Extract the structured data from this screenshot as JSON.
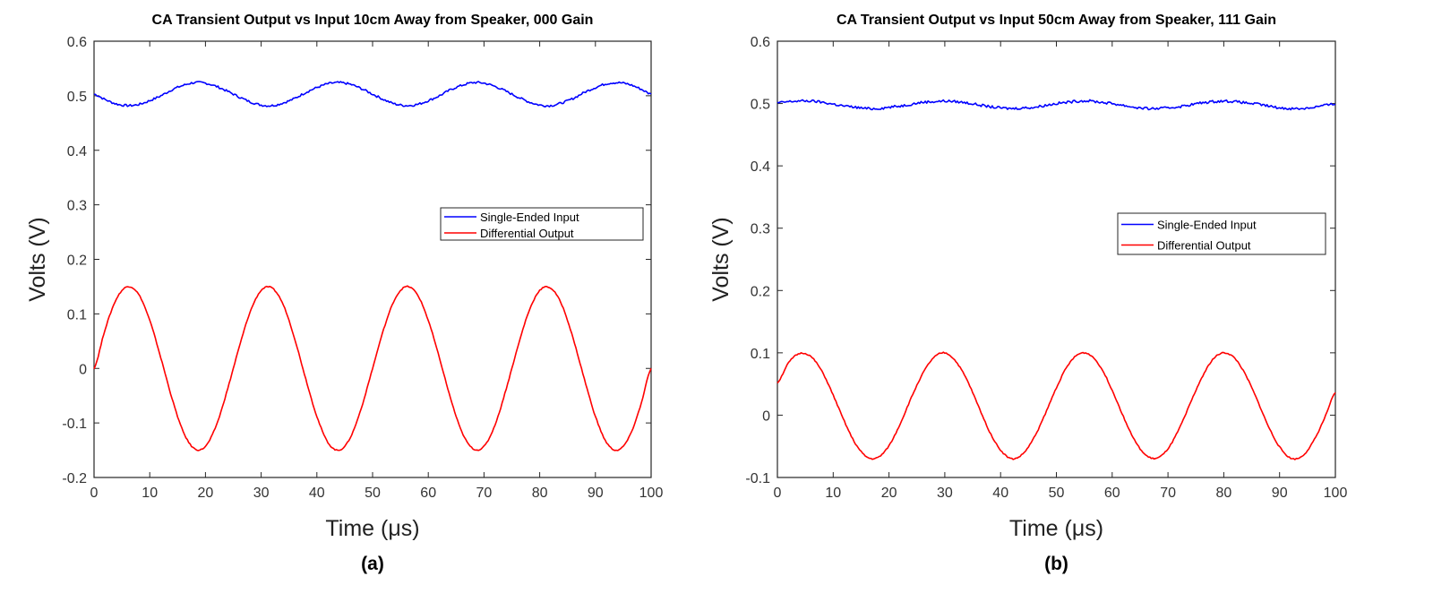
{
  "chart_data": [
    {
      "type": "line",
      "panel_label": "(a)",
      "title": "CA Transient Output vs Input 10cm Away from Speaker, 000 Gain",
      "xlabel": "Time (μs)",
      "ylabel": "Volts (V)",
      "xlim": [
        0,
        100
      ],
      "ylim": [
        -0.2,
        0.6
      ],
      "xticks": [
        0,
        10,
        20,
        30,
        40,
        50,
        60,
        70,
        80,
        90,
        100
      ],
      "yticks": [
        -0.2,
        -0.1,
        0,
        0.1,
        0.2,
        0.3,
        0.4,
        0.5,
        0.6
      ],
      "ytick_labels": [
        "-0.2",
        "-0.1",
        "0",
        "0.1",
        "0.2",
        "0.3",
        "0.4",
        "0.5",
        "0.6"
      ],
      "grid": false,
      "legend_placement": "right-middle",
      "x_step": 2,
      "series": [
        {
          "name": "Single-Ended Input",
          "color": "#0000ff",
          "values": [
            0.503,
            0.493,
            0.485,
            0.482,
            0.484,
            0.491,
            0.5,
            0.511,
            0.519,
            0.524,
            0.523,
            0.517,
            0.508,
            0.498,
            0.489,
            0.483,
            0.482,
            0.487,
            0.495,
            0.506,
            0.515,
            0.522,
            0.524,
            0.521,
            0.513,
            0.503,
            0.493,
            0.485,
            0.482,
            0.484,
            0.491,
            0.5,
            0.511,
            0.519,
            0.524,
            0.523,
            0.517,
            0.508,
            0.498,
            0.489,
            0.483,
            0.482,
            0.487,
            0.495,
            0.506,
            0.515,
            0.522,
            0.524,
            0.521,
            0.513,
            0.503
          ]
        },
        {
          "name": "Differential Output",
          "color": "#ff0000",
          "values": [
            0,
            0.072,
            0.127,
            0.15,
            0.136,
            0.088,
            0.019,
            -0.055,
            -0.116,
            -0.147,
            -0.143,
            -0.103,
            -0.037,
            0.037,
            0.103,
            0.143,
            0.147,
            0.116,
            0.055,
            -0.019,
            -0.088,
            -0.136,
            -0.15,
            -0.127,
            -0.072,
            0,
            0.072,
            0.127,
            0.15,
            0.136,
            0.088,
            0.019,
            -0.055,
            -0.116,
            -0.147,
            -0.143,
            -0.103,
            -0.037,
            0.037,
            0.103,
            0.143,
            0.147,
            0.116,
            0.055,
            -0.019,
            -0.088,
            -0.136,
            -0.15,
            -0.127,
            -0.072,
            0
          ]
        }
      ]
    },
    {
      "type": "line",
      "panel_label": "(b)",
      "title": "CA Transient Output vs Input 50cm Away from Speaker, 111 Gain",
      "xlabel": "Time (μs)",
      "ylabel": "Volts (V)",
      "xlim": [
        0,
        100
      ],
      "ylim": [
        -0.1,
        0.6
      ],
      "xticks": [
        0,
        10,
        20,
        30,
        40,
        50,
        60,
        70,
        80,
        90,
        100
      ],
      "yticks": [
        -0.1,
        0,
        0.1,
        0.2,
        0.3,
        0.4,
        0.5,
        0.6
      ],
      "ytick_labels": [
        "-0.1",
        "0",
        "0.1",
        "0.2",
        "0.3",
        "0.4",
        "0.5",
        "0.6"
      ],
      "grid": false,
      "legend_placement": "right-middle",
      "x_step": 2,
      "series": [
        {
          "name": "Single-Ended Input",
          "color": "#0000ff",
          "values": [
            0.501,
            0.503,
            0.504,
            0.504,
            0.502,
            0.499,
            0.496,
            0.494,
            0.492,
            0.492,
            0.494,
            0.496,
            0.499,
            0.502,
            0.503,
            0.504,
            0.503,
            0.501,
            0.498,
            0.495,
            0.493,
            0.492,
            0.493,
            0.494,
            0.497,
            0.5,
            0.502,
            0.504,
            0.504,
            0.502,
            0.5,
            0.497,
            0.494,
            0.492,
            0.492,
            0.493,
            0.495,
            0.498,
            0.501,
            0.503,
            0.504,
            0.503,
            0.501,
            0.499,
            0.496,
            0.493,
            0.492,
            0.492,
            0.494,
            0.497,
            0.499
          ]
        },
        {
          "name": "Differential Output",
          "color": "#ff0000",
          "values": [
            0.052,
            0.084,
            0.099,
            0.094,
            0.07,
            0.032,
            -0.01,
            -0.046,
            -0.067,
            -0.068,
            -0.049,
            -0.014,
            0.028,
            0.066,
            0.092,
            0.1,
            0.086,
            0.056,
            0.015,
            -0.026,
            -0.056,
            -0.07,
            -0.062,
            -0.036,
            0.002,
            0.044,
            0.079,
            0.098,
            0.097,
            0.076,
            0.04,
            -0.002,
            -0.04,
            -0.064,
            -0.069,
            -0.054,
            -0.022,
            0.019,
            0.059,
            0.089,
            0.1,
            0.091,
            0.063,
            0.024,
            -0.018,
            -0.051,
            -0.069,
            -0.066,
            -0.043,
            -0.006,
            0.036
          ]
        }
      ]
    }
  ]
}
